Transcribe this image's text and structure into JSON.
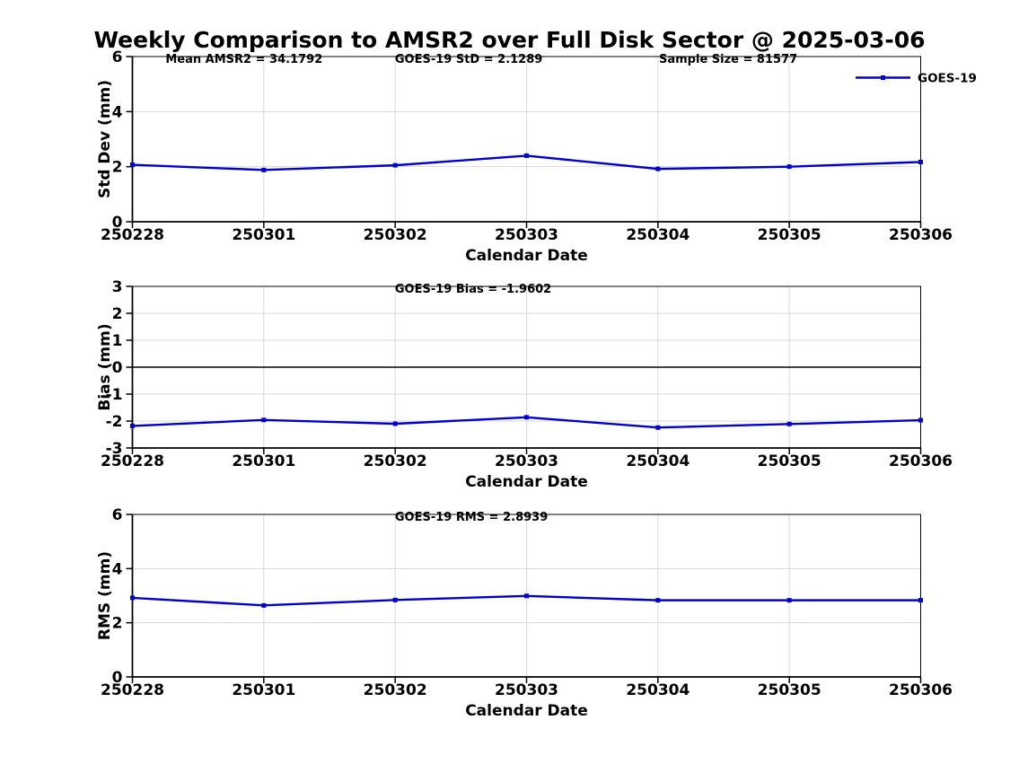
{
  "title": "Weekly Comparison to AMSR2 over Full Disk Sector @ 2025-03-06",
  "legend": {
    "label": "GOES-19"
  },
  "colors": {
    "series": "#0000cc",
    "grid": "#d9d9d9",
    "axis": "#000000",
    "zero_line": "#000000",
    "background": "#ffffff"
  },
  "chart_data": [
    {
      "type": "line",
      "x": [
        "250228",
        "250301",
        "250302",
        "250303",
        "250304",
        "250305",
        "250306"
      ],
      "series": [
        {
          "name": "GOES-19",
          "values": [
            2.07,
            1.88,
            2.05,
            2.4,
            1.92,
            2.0,
            2.17
          ]
        }
      ],
      "annotations": [
        "Mean AMSR2 = 34.1792",
        "GOES-19 StD = 2.1289",
        "Sample Size = 81577"
      ],
      "xlabel": "Calendar Date",
      "ylabel": "Std Dev (mm)",
      "ylim": [
        0,
        6
      ],
      "yticks": [
        0,
        2,
        4,
        6
      ],
      "grid": true,
      "legend": true,
      "legend_position": "top-right"
    },
    {
      "type": "line",
      "x": [
        "250228",
        "250301",
        "250302",
        "250303",
        "250304",
        "250305",
        "250306"
      ],
      "series": [
        {
          "name": "GOES-19",
          "values": [
            -2.18,
            -1.96,
            -2.1,
            -1.86,
            -2.24,
            -2.11,
            -1.97
          ]
        }
      ],
      "annotations": [
        "GOES-19 Bias  = -1.9602"
      ],
      "xlabel": "Calendar Date",
      "ylabel": "Bias (mm)",
      "ylim": [
        -3,
        3
      ],
      "yticks": [
        -3,
        -2,
        -1,
        0,
        1,
        2,
        3
      ],
      "grid": true,
      "zero_line": true,
      "legend": false
    },
    {
      "type": "line",
      "x": [
        "250228",
        "250301",
        "250302",
        "250303",
        "250304",
        "250305",
        "250306"
      ],
      "series": [
        {
          "name": "GOES-19",
          "values": [
            2.92,
            2.64,
            2.84,
            2.99,
            2.83,
            2.83,
            2.83
          ]
        }
      ],
      "annotations": [
        "GOES-19 RMS = 2.8939"
      ],
      "xlabel": "Calendar Date",
      "ylabel": "RMS (mm)",
      "ylim": [
        0,
        6
      ],
      "yticks": [
        0,
        2,
        4,
        6
      ],
      "grid": true,
      "legend": false
    }
  ]
}
